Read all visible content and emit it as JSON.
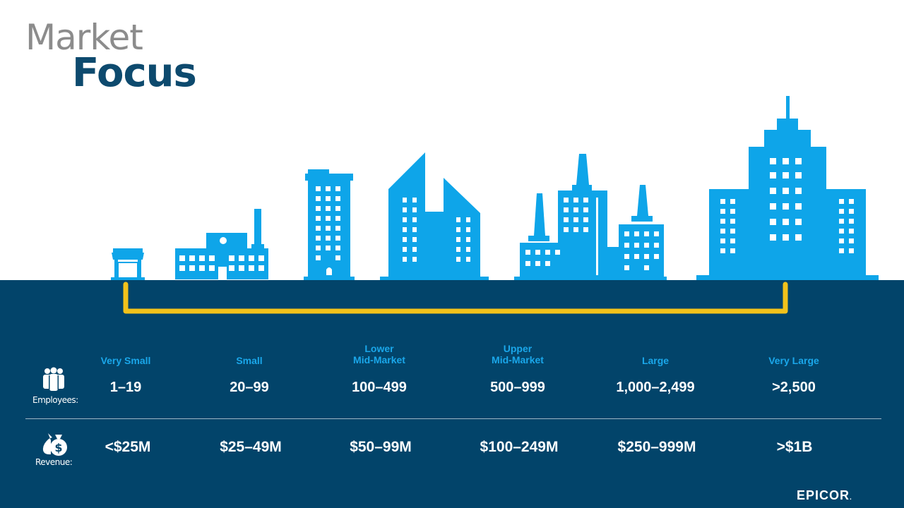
{
  "title": {
    "line1": "Market",
    "line2": "Focus"
  },
  "segments": [
    {
      "label": "Very Small",
      "employees": "1–19",
      "revenue": "<$25M"
    },
    {
      "label": "Small",
      "employees": "20–99",
      "revenue": "$25–49M"
    },
    {
      "label": "Lower\nMid-Market",
      "employees": "100–499",
      "revenue": "$50–99M"
    },
    {
      "label": "Upper\nMid-Market",
      "employees": "500–999",
      "revenue": "$100–249M"
    },
    {
      "label": "Large",
      "employees": "1,000–2,499",
      "revenue": "$250–999M"
    },
    {
      "label": "Very Large",
      "employees": ">2,500",
      "revenue": ">$1B"
    }
  ],
  "rows": {
    "employees_caption": "Employees:",
    "revenue_caption": "Revenue:"
  },
  "icons": {
    "employees": "people-icon",
    "revenue": "money-bag-icon"
  },
  "logo": "EPICOR",
  "logo_mark": ".",
  "colors": {
    "building": "#0ea5e9",
    "band": "#02446a",
    "bracket": "#f2c21b",
    "title_gray": "#8c8c8c",
    "title_blue": "#0d4a6e"
  }
}
